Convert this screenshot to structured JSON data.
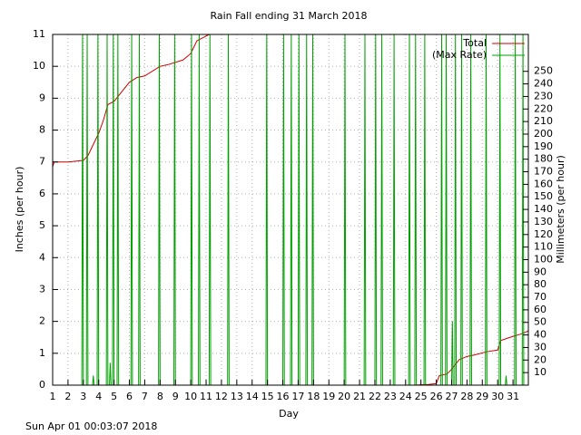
{
  "chart_data": {
    "type": "line",
    "title": "Rain Fall ending 31 March 2018",
    "x_label": "Day",
    "y_label": "Inches (per hour)",
    "y2_label": "Millimeters (per hour)",
    "footer": "Sun Apr 01 00:03:07 2018",
    "xlim": [
      1,
      32
    ],
    "xticks": [
      1,
      2,
      3,
      4,
      5,
      6,
      7,
      8,
      9,
      10,
      11,
      12,
      13,
      14,
      15,
      16,
      17,
      18,
      19,
      20,
      21,
      22,
      23,
      24,
      25,
      26,
      27,
      28,
      29,
      30,
      31
    ],
    "ylim": [
      0,
      11
    ],
    "yticks": [
      0,
      1,
      2,
      3,
      4,
      5,
      6,
      7,
      8,
      9,
      10,
      11
    ],
    "y2lim": [
      0,
      279.4
    ],
    "y2ticks": [
      10,
      20,
      30,
      40,
      50,
      60,
      70,
      80,
      90,
      100,
      110,
      120,
      130,
      140,
      150,
      160,
      170,
      180,
      190,
      200,
      210,
      220,
      230,
      240,
      250
    ],
    "grid": true,
    "legend": "top-right",
    "series": [
      {
        "name": "Total",
        "color": "#cc0000",
        "x": [
          1,
          1.1,
          2,
          3,
          3.3,
          3.6,
          4,
          4.3,
          4.6,
          5,
          5.5,
          6,
          6.5,
          7,
          8,
          8.5,
          9.5,
          10,
          10.4,
          10.8,
          11.2,
          18,
          24.5,
          25.5,
          26,
          26.2,
          26.7,
          27,
          27.5,
          28,
          28.5,
          29.3,
          30,
          30.2,
          30.8,
          31.5,
          32
        ],
        "values": [
          6.85,
          7,
          7,
          7.05,
          7.2,
          7.5,
          7.9,
          8.3,
          8.8,
          8.9,
          9.2,
          9.5,
          9.65,
          9.7,
          10,
          10.05,
          10.2,
          10.4,
          10.8,
          10.9,
          11,
          null,
          0,
          0.02,
          0.05,
          0.3,
          0.35,
          0.5,
          0.8,
          0.9,
          0.95,
          1.05,
          1.1,
          1.4,
          1.5,
          1.6,
          1.7
        ]
      },
      {
        "name": "(Max Rate)",
        "color": "#00a000",
        "x": [
          2.9,
          2.95,
          3.0,
          3.2,
          3.25,
          3.3,
          3.6,
          3.65,
          3.7,
          3.9,
          3.95,
          4.0,
          4.5,
          4.55,
          4.6,
          4.7,
          4.75,
          4.8,
          4.9,
          4.95,
          5.0,
          5.2,
          5.25,
          5.3,
          6.1,
          6.15,
          6.2,
          6.6,
          6.65,
          6.7,
          7.9,
          7.95,
          8.0,
          8.9,
          8.95,
          9.0,
          10.0,
          10.05,
          10.1,
          10.5,
          10.55,
          10.6,
          11.2,
          11.25,
          11.3,
          12.4,
          12.45,
          12.5,
          14.9,
          14.95,
          15.0,
          16.0,
          16.05,
          16.1,
          16.5,
          16.55,
          16.6,
          17.0,
          17.05,
          17.1,
          17.5,
          17.55,
          17.6,
          17.9,
          17.95,
          18.0,
          20.0,
          20.05,
          20.1,
          21.3,
          21.35,
          21.4,
          22.0,
          22.05,
          22.1,
          22.4,
          22.45,
          22.5,
          23.2,
          23.25,
          23.3,
          24.2,
          24.25,
          24.3,
          24.6,
          24.65,
          24.7,
          25.2,
          25.25,
          25.3,
          26.3,
          26.35,
          26.4,
          26.6,
          26.65,
          26.7,
          27.0,
          27.05,
          27.1,
          27.2,
          27.25,
          27.3,
          27.6,
          27.65,
          27.7,
          28.2,
          28.25,
          28.3,
          29.2,
          29.25,
          29.3,
          30.1,
          30.15,
          30.2,
          30.5,
          30.55,
          30.6,
          31.1,
          31.15,
          31.2,
          31.6,
          31.65,
          31.7
        ],
        "values": [
          0,
          11,
          0,
          0,
          11,
          0,
          0,
          0.3,
          0,
          0,
          11,
          0,
          0,
          11,
          0,
          0,
          0.7,
          0,
          0,
          11,
          0,
          0,
          11,
          0,
          0,
          11,
          0,
          0,
          11,
          0,
          0,
          11,
          0,
          0,
          11,
          0,
          0,
          11,
          0,
          0,
          11,
          0,
          0,
          11,
          0,
          0,
          11,
          0,
          0,
          11,
          0,
          0,
          11,
          0,
          0,
          11,
          0,
          0,
          11,
          0,
          0,
          11,
          0,
          0,
          11,
          0,
          0,
          11,
          0,
          0,
          11,
          0,
          0,
          11,
          0,
          0,
          11,
          0,
          0,
          11,
          0,
          0,
          11,
          0,
          0,
          11,
          0,
          0,
          11,
          0,
          0,
          11,
          0,
          0,
          11,
          0,
          0,
          2.0,
          0,
          0,
          11,
          0,
          0,
          11,
          0,
          0,
          11,
          0,
          0,
          11,
          0,
          0,
          11,
          0,
          0,
          0.3,
          0,
          0,
          11,
          0,
          0,
          11,
          0
        ]
      }
    ]
  }
}
